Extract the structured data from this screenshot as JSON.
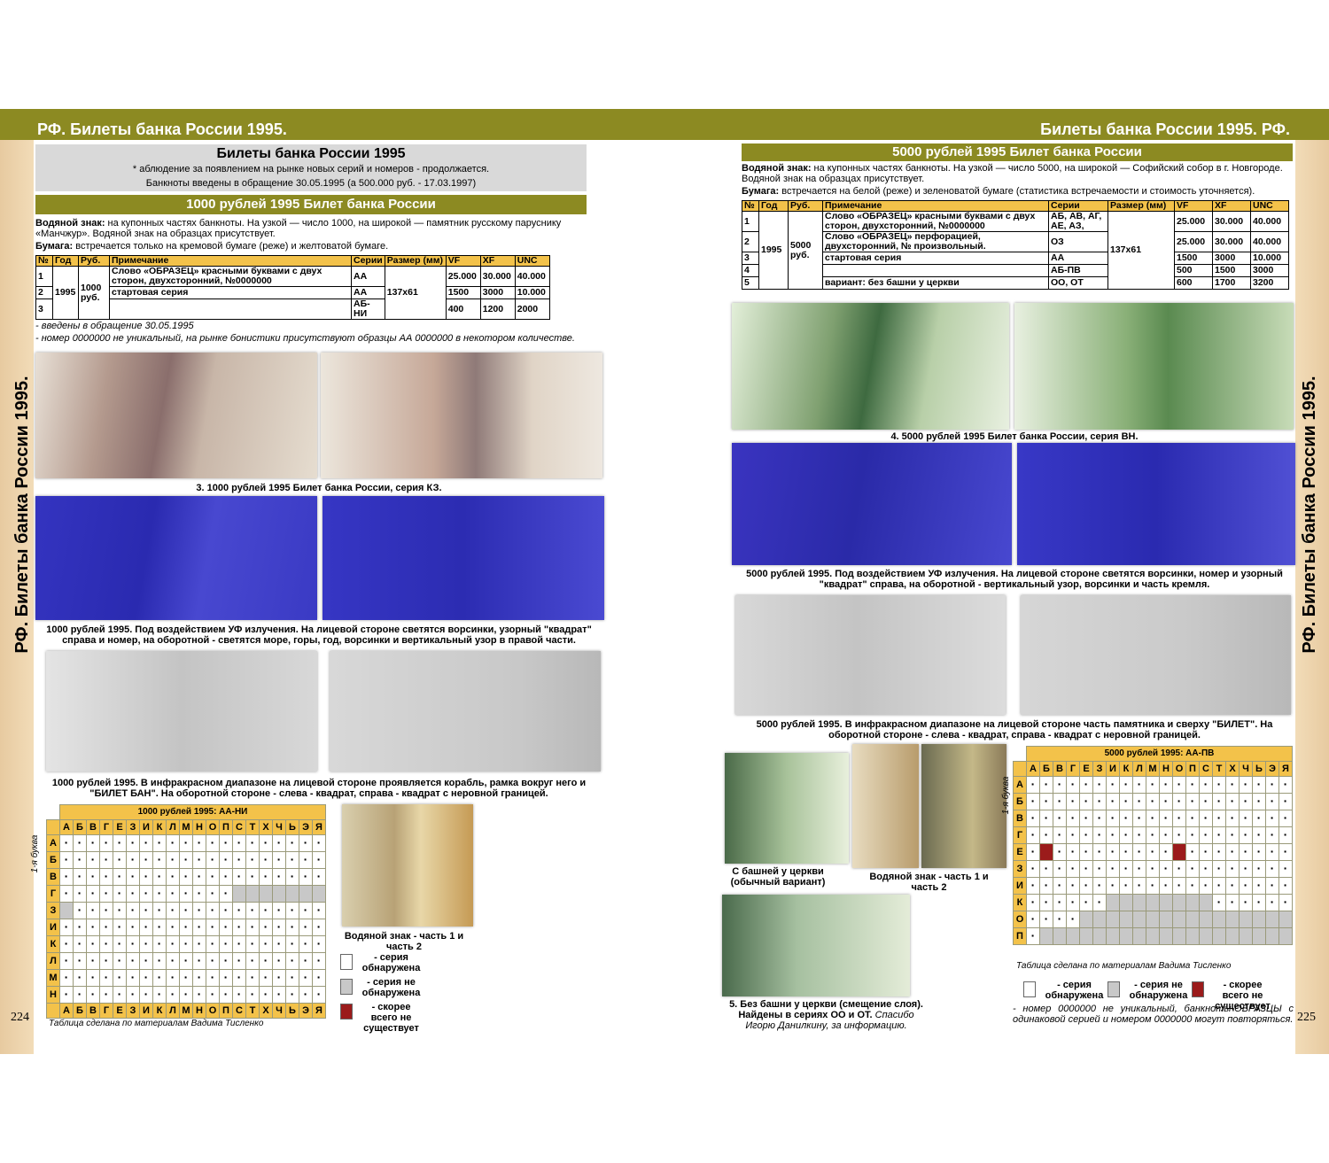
{
  "left_page": {
    "header": "РФ. Билеты банка России 1995.",
    "side_title": "РФ. Билеты банка России 1995.",
    "page_number": "224",
    "intro": {
      "title": "Билеты банка России 1995",
      "lines": [
        "* аблюдение за появлением  на рынке новых серий и номеров - продолжается.",
        "Банкноты введены в обращение 30.05.1995 (а 500.000 руб. - 17.03.1997)"
      ]
    },
    "section_title": "1000 рублей 1995 Билет банка России",
    "watermark_label": "Водяной знак:",
    "watermark_text": " на купонных частях банкноты. На узкой — число 1000, на широкой — памятник русскому паруснику «Манчжур». Водяной знак на образцах присутствует.",
    "paper_label": "Бумага:",
    "paper_text": " встречается только на кремовой бумаге (реже) и желтоватой бумаге.",
    "table": {
      "headers": [
        "№",
        "Год",
        "Руб.",
        "Примечание",
        "Серии",
        "Размер (мм)",
        "VF",
        "XF",
        "UNC"
      ],
      "year": "1995",
      "rub": "1000 руб.",
      "size": "137x61",
      "rows": [
        {
          "no": "1",
          "note": "Слово «ОБРАЗЕЦ» красными буквами с двух сторон, двухсторонний,  №0000000",
          "series": "АА",
          "vf": "25.000",
          "xf": "30.000",
          "unc": "40.000"
        },
        {
          "no": "2",
          "note": "стартовая серия",
          "series": "АА",
          "vf": "1500",
          "xf": "3000",
          "unc": "10.000"
        },
        {
          "no": "3",
          "note": "",
          "series": "АБ-НИ",
          "vf": "400",
          "xf": "1200",
          "unc": "2000"
        }
      ]
    },
    "notes": [
      "- введены в обращение 30.05.1995",
      "- номер 0000000 не уникальный, на рынке бонистики присутствуют образцы АА 0000000 в некотором количестве."
    ],
    "captions": {
      "fig3": "3. 1000 рублей 1995 Билет банка России, серия КЗ.",
      "uv": "1000 рублей 1995. Под воздействием УФ излучения. На лицевой стороне светятся ворсинки, узорный \"квадрат\" справа и номер, на оборотной - светятся море, горы, год, ворсинки и вертикальный узор в правой части.",
      "ir": "1000 рублей 1995. В инфракрасном диапазоне на лицевой стороне проявляется корабль, рамка вокруг него и \"БИЛЕТ БАН\". На оборотной стороне - слева - квадрат, справа - квадрат с неровной границей.",
      "watermark": "Водяной знак - часть 1 и часть 2"
    },
    "grid": {
      "title": "1000 рублей 1995: АА-НИ",
      "axis_label": "1-я буква",
      "letters": [
        "А",
        "Б",
        "В",
        "Г",
        "Е",
        "З",
        "И",
        "К",
        "Л",
        "М",
        "Н",
        "О",
        "П",
        "С",
        "Т",
        "Х",
        "Ч",
        "Ь",
        "Э",
        "Я"
      ],
      "rows": [
        {
          "letter": "А",
          "cells": "dddddddddddddddddddd"
        },
        {
          "letter": "Б",
          "cells": "dddddddddddddddddddd"
        },
        {
          "letter": "В",
          "cells": "dddddddddddddddddddd"
        },
        {
          "letter": "Г",
          "cells": "dddddddddddddggggggg"
        },
        {
          "letter": "З",
          "cells": "gddddddddddddddddddd"
        },
        {
          "letter": "И",
          "cells": "dddddddddddddddddddd"
        },
        {
          "letter": "К",
          "cells": "dddddddddddddddddddd"
        },
        {
          "letter": "Л",
          "cells": "dddddddddddddddddddd"
        },
        {
          "letter": "М",
          "cells": "dddddddddddddddddddd"
        },
        {
          "letter": "Н",
          "cells": "dddddddddddddddddddd"
        }
      ]
    },
    "legend": [
      "- серия обнаружена",
      "- серия не обнаружена",
      "- скорее всего не существует"
    ],
    "credit": "Таблица сделана по материалам Вадима Тисленко"
  },
  "right_page": {
    "header": "Билеты банка России 1995. РФ.",
    "side_title": "РФ. Билеты банка России 1995.",
    "page_number": "225",
    "section_title": "5000 рублей 1995 Билет банка России",
    "watermark_label": "Водяной знак:",
    "watermark_text": " на купонных частях банкноты. На узкой — число 5000, на широкой — Софийский собор в г. Новгороде. Водяной знак на образцах присутствует.",
    "paper_label": "Бумага:",
    "paper_text": " встречается на белой (реже) и зеленоватой бумаге (статистика встречаемости и стоимость уточняется).",
    "table": {
      "headers": [
        "№",
        "Год",
        "Руб.",
        "Примечание",
        "Серии",
        "Размер (мм)",
        "VF",
        "XF",
        "UNC"
      ],
      "year": "1995",
      "rub": "5000 руб.",
      "size": "137x61",
      "rows": [
        {
          "no": "1",
          "note": "Слово «ОБРАЗЕЦ» красными буквами с двух сторон, двухсторонний,  №0000000",
          "series": "АБ, АВ, АГ, АЕ, АЗ,",
          "vf": "25.000",
          "xf": "30.000",
          "unc": "40.000"
        },
        {
          "no": "2",
          "note": "Слово «ОБРАЗЕЦ» перфорацией, двухсторонний, № произвольный.",
          "series": "ОЗ",
          "vf": "25.000",
          "xf": "30.000",
          "unc": "40.000"
        },
        {
          "no": "3",
          "note": "стартовая серия",
          "series": "АА",
          "vf": "1500",
          "xf": "3000",
          "unc": "10.000"
        },
        {
          "no": "4",
          "note": "",
          "series": "АБ-ПВ",
          "vf": "500",
          "xf": "1500",
          "unc": "3000"
        },
        {
          "no": "5",
          "note": "вариант: без башни у церкви",
          "series": "ОО, ОТ",
          "vf": "600",
          "xf": "1700",
          "unc": "3200"
        }
      ]
    },
    "captions": {
      "fig4": "4. 5000 рублей 1995 Билет банка России, серия ВН.",
      "uv": "5000 рублей 1995. Под воздействием УФ излучения. На лицевой стороне светятся ворсинки, номер и узорный \"квадрат\" справа, на оборотной - вертикальный узор, ворсинки и часть кремля.",
      "ir": "5000 рублей 1995. В инфракрасном диапазоне на лицевой стороне часть памятника и сверху \"БИЛЕТ\". На оборотной стороне - слева - квадрат, справа - квадрат с неровной границей.",
      "tower": "С башней у церкви (обычный вариант)",
      "watermark": "Водяной знак - часть 1 и часть 2",
      "fig5": "5. Без башни у церкви (смещение слоя). Найдены в сериях ОО и ОТ.",
      "fig5_thanks": " Спасибо Игорю Данилкину, за информацию."
    },
    "grid": {
      "title": "5000 рублей 1995: АА-ПВ",
      "axis_label": "1-я буква",
      "letters": [
        "А",
        "Б",
        "В",
        "Г",
        "Е",
        "З",
        "И",
        "К",
        "Л",
        "М",
        "Н",
        "О",
        "П",
        "С",
        "Т",
        "Х",
        "Ч",
        "Ь",
        "Э",
        "Я"
      ],
      "rows": [
        {
          "letter": "А",
          "cells": "dddddddddddddddddddd"
        },
        {
          "letter": "Б",
          "cells": "dddddddddddddddddddd"
        },
        {
          "letter": "В",
          "cells": "dddddddddddddddddddd"
        },
        {
          "letter": "Г",
          "cells": "dddddddddddddddddddd"
        },
        {
          "letter": "Е",
          "cells": "drdddddddddrdddddddd"
        },
        {
          "letter": "З",
          "cells": "dddddddddddddddddddd"
        },
        {
          "letter": "И",
          "cells": "dddddddddddddddddddd"
        },
        {
          "letter": "К",
          "cells": "ddddddggggggggdddddd"
        },
        {
          "letter": "О",
          "cells": "ddddgggggggggggggggg"
        },
        {
          "letter": "П",
          "cells": "dggggggggggggggggggg"
        }
      ]
    },
    "legend": [
      "- серия обнаружена",
      "- серия не обнаружена",
      "- скорее всего не существует"
    ],
    "credit": "Таблица сделана по материалам Вадима Тисленко",
    "notes": [
      "- номер 0000000 не уникальный, банкноты-ОБРАЗЦЫ с одинаковой серией и номером 0000000 могут повторяться."
    ]
  }
}
